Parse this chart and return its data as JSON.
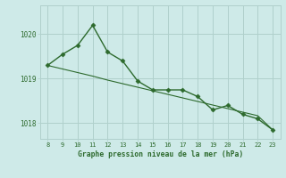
{
  "x": [
    8,
    9,
    10,
    11,
    12,
    13,
    14,
    15,
    16,
    17,
    18,
    19,
    20,
    21,
    22,
    23
  ],
  "y_main": [
    1019.3,
    1019.55,
    1019.75,
    1020.2,
    1019.6,
    1019.4,
    1018.95,
    1018.75,
    1018.75,
    1018.75,
    1018.6,
    1018.3,
    1018.4,
    1018.2,
    1018.1,
    1017.85
  ],
  "y_trend": [
    1019.3,
    1019.22,
    1019.14,
    1019.06,
    1018.97,
    1018.89,
    1018.81,
    1018.73,
    1018.65,
    1018.57,
    1018.49,
    1018.41,
    1018.33,
    1018.25,
    1018.17,
    1017.85
  ],
  "line_color": "#2d6a2d",
  "bg_color": "#ceeae8",
  "grid_color": "#b0d0cc",
  "xlabel": "Graphe pression niveau de la mer (hPa)",
  "ylim": [
    1017.65,
    1020.65
  ],
  "yticks": [
    1018,
    1019,
    1020
  ],
  "xticks": [
    8,
    9,
    10,
    11,
    12,
    13,
    14,
    15,
    16,
    17,
    18,
    19,
    20,
    21,
    22,
    23
  ],
  "marker": "D",
  "markersize": 2.5,
  "linewidth": 1.0,
  "trend_linewidth": 0.8
}
